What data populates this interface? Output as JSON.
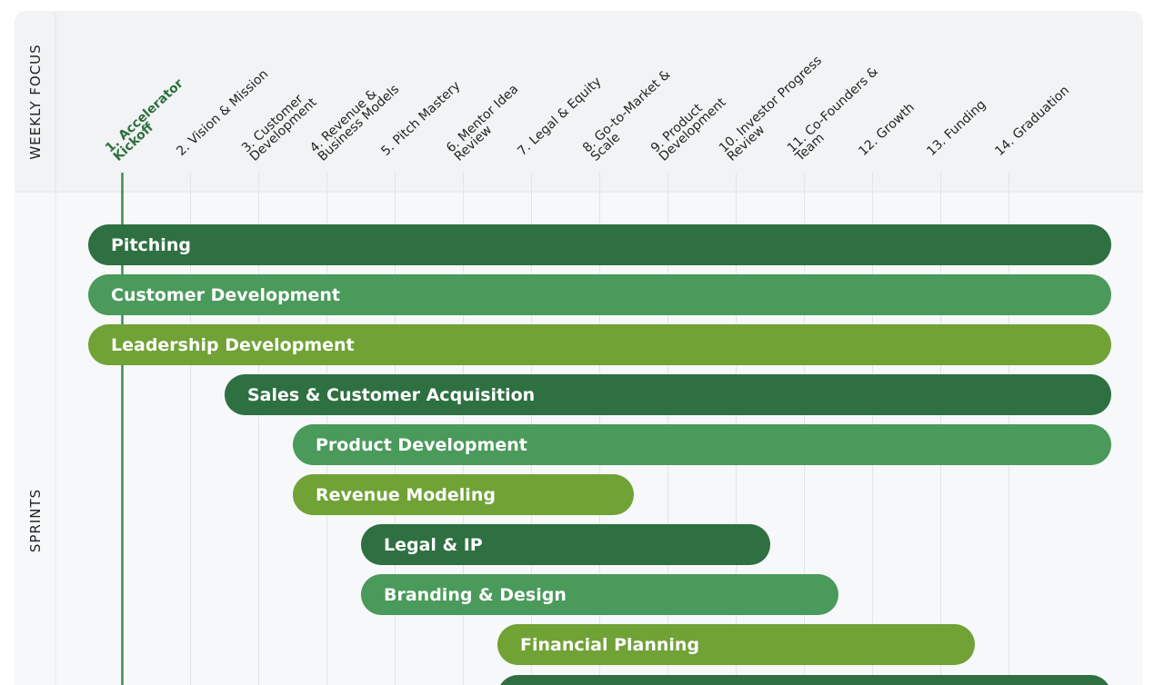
{
  "side_labels": {
    "weekly_focus": "WEEKLY FOCUS",
    "sprints": "SPRINTS"
  },
  "current_week": 1,
  "weeks": [
    {
      "week": 1,
      "lines": [
        "1. Accelerator",
        "Kickoff"
      ]
    },
    {
      "week": 2,
      "lines": [
        "2. Vision & Mission"
      ]
    },
    {
      "week": 3,
      "lines": [
        "3. Customer",
        "Development"
      ]
    },
    {
      "week": 4,
      "lines": [
        "4. Revenue &",
        "Business Models"
      ]
    },
    {
      "week": 5,
      "lines": [
        "5. Pitch Mastery"
      ]
    },
    {
      "week": 6,
      "lines": [
        "6. Mentor Idea",
        "Review"
      ]
    },
    {
      "week": 7,
      "lines": [
        "7. Legal & Equity"
      ]
    },
    {
      "week": 8,
      "lines": [
        "8. Go-to-Market &",
        "Scale"
      ]
    },
    {
      "week": 9,
      "lines": [
        "9. Product",
        "Development"
      ]
    },
    {
      "week": 10,
      "lines": [
        "10. Investor Progress",
        "Review"
      ]
    },
    {
      "week": 11,
      "lines": [
        "11. Co-Founders &",
        "Team"
      ]
    },
    {
      "week": 12,
      "lines": [
        "12. Growth"
      ]
    },
    {
      "week": 13,
      "lines": [
        "13. Funding"
      ]
    },
    {
      "week": 14,
      "lines": [
        "14. Graduation"
      ]
    }
  ],
  "sprints": [
    {
      "name": "Pitching",
      "start": 1,
      "end": 15,
      "color": "#2e7041"
    },
    {
      "name": "Customer Development",
      "start": 1,
      "end": 15,
      "color": "#4a9a5b"
    },
    {
      "name": "Leadership Development",
      "start": 1,
      "end": 15,
      "color": "#70a236"
    },
    {
      "name": "Sales & Customer Acquisition",
      "start": 3,
      "end": 15,
      "color": "#2e7041"
    },
    {
      "name": "Product Development",
      "start": 4,
      "end": 15,
      "color": "#4a9a5b"
    },
    {
      "name": "Revenue Modeling",
      "start": 4,
      "end": 8,
      "color": "#70a236"
    },
    {
      "name": "Legal & IP",
      "start": 5,
      "end": 10,
      "color": "#2e7041"
    },
    {
      "name": "Branding & Design",
      "start": 5,
      "end": 11,
      "color": "#4a9a5b"
    },
    {
      "name": "Financial Planning",
      "start": 7,
      "end": 13,
      "color": "#70a236"
    }
  ]
}
